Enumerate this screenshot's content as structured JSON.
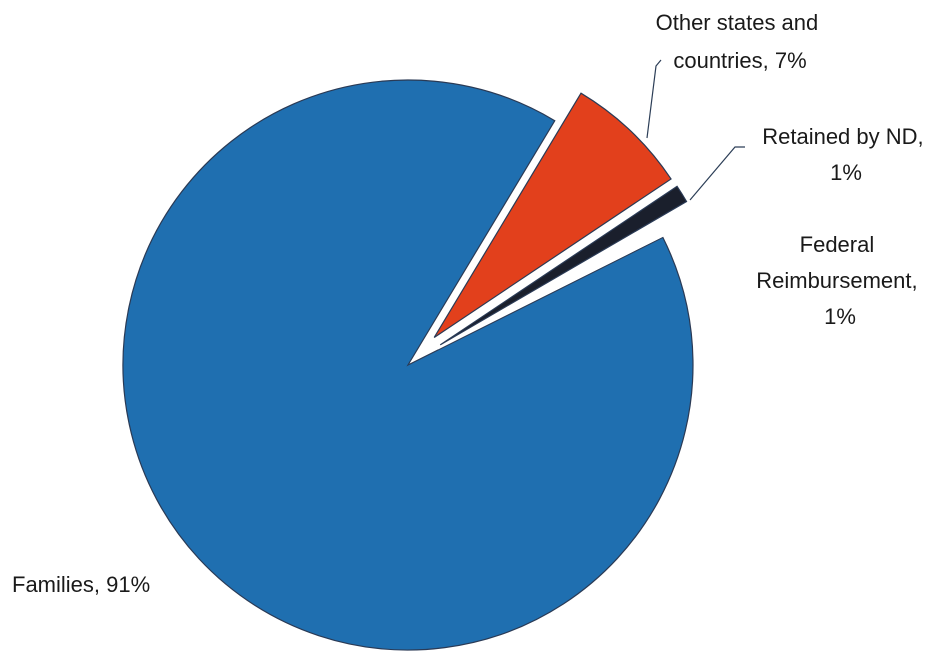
{
  "chart_data": {
    "type": "pie",
    "title": "",
    "slices": [
      {
        "name": "Families",
        "value": 91,
        "label_lines": [
          "Families, 91%"
        ],
        "color": "#1f6fb0"
      },
      {
        "name": "Other states and countries",
        "value": 7,
        "label_lines": [
          "Other states and",
          "countries, 7%"
        ],
        "color": "#e2401c"
      },
      {
        "name": "Retained by ND",
        "value": 1,
        "label_lines": [
          "Retained by ND,",
          "1%"
        ],
        "color": "#1a1f2c"
      },
      {
        "name": "Federal Reimbursement",
        "value": 1,
        "label_lines": [
          "Federal",
          "Reimbursement,",
          "1%"
        ],
        "color": "#ffffff"
      }
    ],
    "start_angle_deg": 59,
    "direction": "clockwise",
    "exploded_slices": [
      "Other states and countries",
      "Retained by ND",
      "Federal Reimbursement"
    ],
    "legend": "none"
  }
}
